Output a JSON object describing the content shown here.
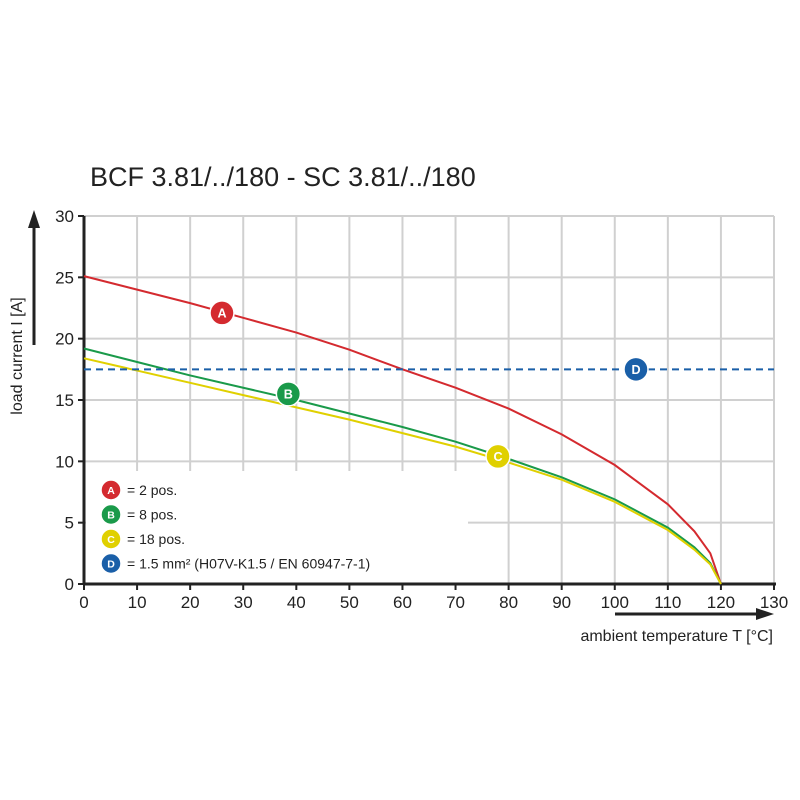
{
  "chart_data": {
    "type": "line",
    "title": "BCF 3.81/../180 - SC 3.81/../180",
    "xlabel": "ambient temperature T [°C]",
    "ylabel": "load current I [A]",
    "xlim": [
      0,
      130
    ],
    "ylim": [
      0,
      30
    ],
    "xticks": [
      0,
      10,
      20,
      30,
      40,
      50,
      60,
      70,
      80,
      90,
      100,
      110,
      120,
      130
    ],
    "yticks": [
      0,
      5,
      10,
      15,
      20,
      25,
      30
    ],
    "grid": true,
    "legend_placement": "bottom-left",
    "series": [
      {
        "name": "A",
        "legend": "= 2 pos.",
        "color": "#d42a2f",
        "label_at": [
          26,
          22.1
        ],
        "x": [
          0,
          10,
          20,
          30,
          40,
          50,
          60,
          70,
          80,
          90,
          100,
          110,
          115,
          118,
          120
        ],
        "y": [
          25.1,
          24.0,
          22.9,
          21.7,
          20.5,
          19.1,
          17.5,
          16.0,
          14.3,
          12.2,
          9.7,
          6.5,
          4.3,
          2.5,
          0
        ]
      },
      {
        "name": "B",
        "legend": "= 8 pos.",
        "color": "#1a9a4a",
        "label_at": [
          38.5,
          15.5
        ],
        "x": [
          0,
          10,
          20,
          30,
          40,
          50,
          60,
          70,
          80,
          90,
          100,
          110,
          115,
          118,
          120
        ],
        "y": [
          19.2,
          18.1,
          17.0,
          16.0,
          15.0,
          13.9,
          12.8,
          11.6,
          10.2,
          8.7,
          6.9,
          4.6,
          3.0,
          1.7,
          0
        ]
      },
      {
        "name": "C",
        "legend": "= 18 pos.",
        "color": "#e0d000",
        "label_at": [
          78,
          10.4
        ],
        "x": [
          0,
          10,
          20,
          30,
          40,
          50,
          60,
          70,
          80,
          90,
          100,
          110,
          115,
          118,
          120
        ],
        "y": [
          18.4,
          17.4,
          16.4,
          15.4,
          14.4,
          13.4,
          12.3,
          11.2,
          9.9,
          8.5,
          6.7,
          4.4,
          2.8,
          1.6,
          0
        ]
      },
      {
        "name": "D",
        "legend": "= 1.5 mm² (H07V-K1.5 / EN 60947-7-1)",
        "color": "#1a5fa8",
        "dashed": true,
        "label_at": [
          104,
          17.5
        ],
        "x": [
          0,
          130
        ],
        "y": [
          17.5,
          17.5
        ]
      }
    ]
  }
}
